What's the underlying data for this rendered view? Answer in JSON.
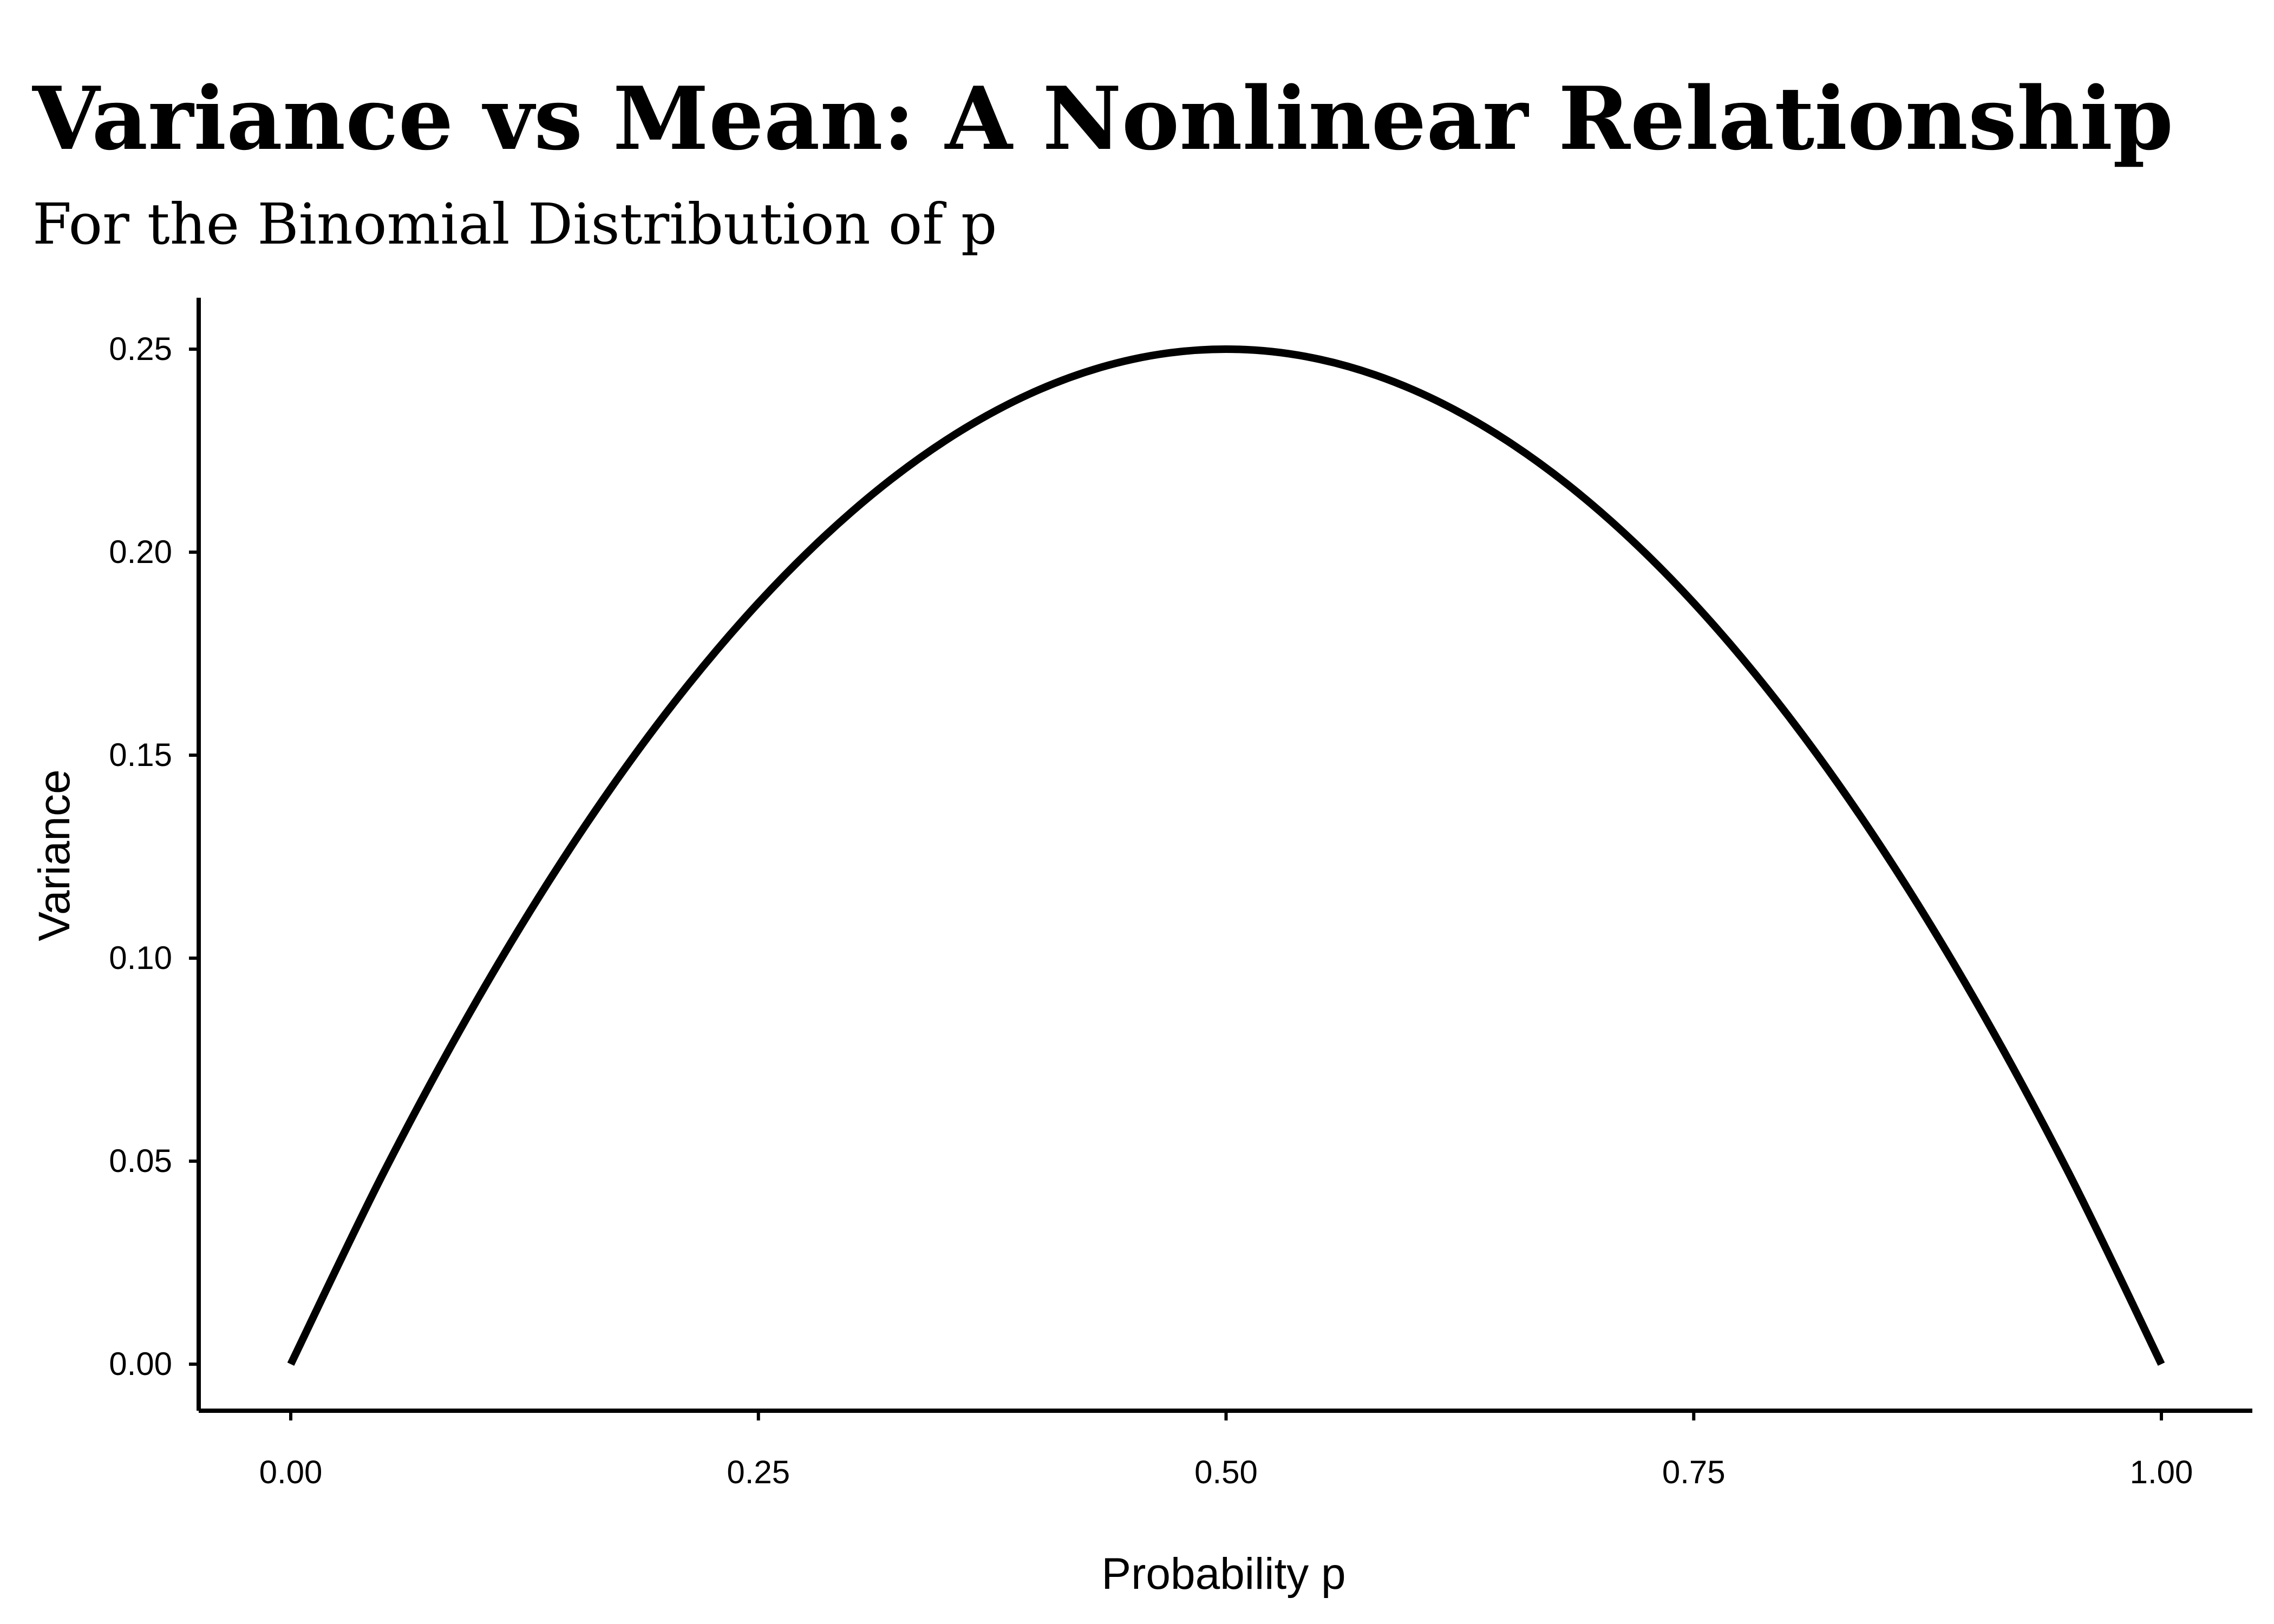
{
  "chart_data": {
    "type": "line",
    "title": "Variance vs Mean: A Nonlinear Relationship",
    "subtitle": "For the Binomial Distribution of p",
    "xlabel": "Probability p",
    "ylabel": "Variance",
    "xlim": [
      0,
      1
    ],
    "ylim": [
      0,
      0.25
    ],
    "x_ticks": [
      "0.00",
      "0.25",
      "0.50",
      "0.75",
      "1.00"
    ],
    "y_ticks": [
      "0.00",
      "0.05",
      "0.10",
      "0.15",
      "0.20",
      "0.25"
    ],
    "grid": false,
    "line_color": "#000000",
    "series": [
      {
        "x": [
          0.0,
          0.05,
          0.1,
          0.15,
          0.2,
          0.25,
          0.3,
          0.35,
          0.4,
          0.45,
          0.5,
          0.55,
          0.6,
          0.65,
          0.7,
          0.75,
          0.8,
          0.85,
          0.9,
          0.95,
          1.0
        ],
        "values": [
          0.0,
          0.0475,
          0.09,
          0.1275,
          0.16,
          0.1875,
          0.21,
          0.2275,
          0.24,
          0.2475,
          0.25,
          0.2475,
          0.24,
          0.2275,
          0.21,
          0.1875,
          0.16,
          0.1275,
          0.09,
          0.0475,
          0.0
        ]
      }
    ]
  }
}
